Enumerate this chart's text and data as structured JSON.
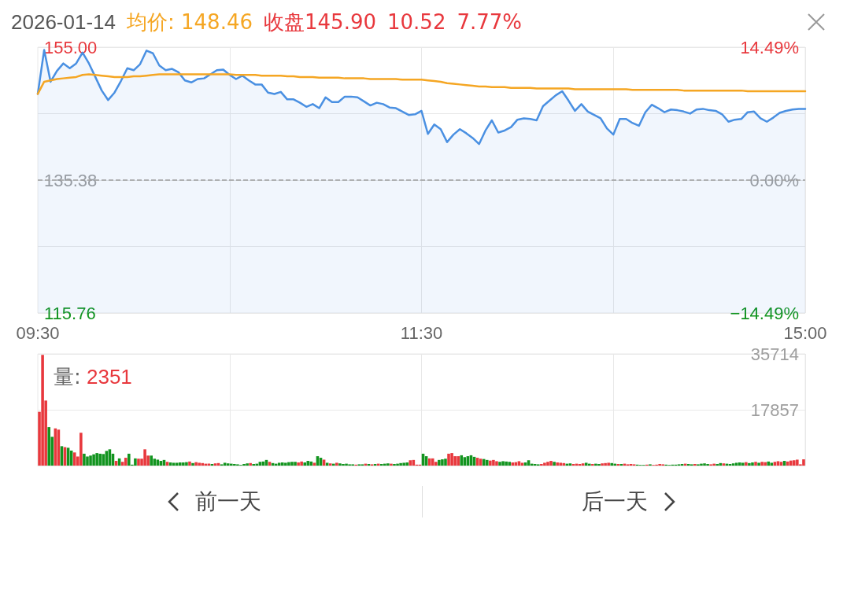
{
  "chart_data": [
    {
      "type": "line",
      "title": "2026-01-14",
      "annotations": [
        "均价: 148.46",
        "收盘145.90",
        "10.52",
        "7.77%"
      ],
      "categories": [
        "09:30",
        null,
        null,
        null,
        null,
        null,
        null,
        null,
        null,
        null,
        null,
        null,
        null,
        null,
        null,
        null,
        null,
        null,
        null,
        null,
        null,
        null,
        null,
        null,
        null,
        null,
        null,
        null,
        null,
        null,
        null,
        null,
        null,
        null,
        null,
        null,
        null,
        null,
        null,
        null,
        null,
        null,
        null,
        null,
        null,
        null,
        null,
        null,
        null,
        null,
        null,
        null,
        null,
        null,
        null,
        null,
        null,
        null,
        null,
        null,
        "11:30",
        null,
        null,
        null,
        null,
        null,
        null,
        null,
        null,
        null,
        null,
        null,
        null,
        null,
        null,
        null,
        null,
        null,
        null,
        null,
        null,
        null,
        null,
        null,
        null,
        null,
        null,
        null,
        null,
        null,
        null,
        null,
        null,
        null,
        null,
        null,
        null,
        null,
        null,
        null,
        null,
        null,
        null,
        null,
        null,
        null,
        null,
        null,
        null,
        null,
        null,
        null,
        null,
        null,
        null,
        null,
        null,
        null,
        null,
        null,
        "15:00"
      ],
      "ylim": [
        115.76,
        155.0
      ],
      "yticks": [
        {
          "value": 115.76,
          "label": "115.76"
        },
        {
          "value": 125.57,
          "label": null
        },
        {
          "value": 135.38,
          "label": "135.38"
        },
        {
          "value": 145.19,
          "label": null
        },
        {
          "value": 155.0,
          "label": "155.00"
        }
      ],
      "y2lim": [
        -14.49,
        14.49
      ],
      "y2ticks": [
        {
          "value": -14.49,
          "label": "−14.49%"
        },
        {
          "value": 0,
          "label": "0.00%"
        },
        {
          "value": 14.49,
          "label": "14.49%"
        }
      ],
      "ref_lines": [
        {
          "axis": "y",
          "value": 135.38,
          "line_style": "dashed",
          "color": "#9e9e9e"
        }
      ],
      "grid": true,
      "series": [
        {
          "type": "area",
          "color": "#4a90e2",
          "values": [
            148.1,
            154.6,
            149.9,
            151.5,
            152.6,
            151.9,
            152.6,
            154.2,
            152.6,
            150.6,
            148.6,
            147.2,
            148.3,
            150.0,
            151.9,
            151.6,
            152.5,
            154.5,
            154.1,
            152.3,
            151.6,
            151.8,
            151.3,
            150.1,
            149.8,
            150.3,
            150.4,
            151.0,
            151.6,
            151.7,
            150.9,
            150.3,
            150.8,
            150.1,
            149.5,
            149.5,
            148.3,
            148.1,
            148.4,
            147.3,
            147.3,
            146.8,
            146.2,
            146.6,
            146.0,
            147.6,
            146.9,
            146.9,
            147.7,
            147.7,
            147.6,
            147.0,
            146.4,
            146.8,
            146.6,
            146.1,
            146.0,
            145.5,
            145.0,
            145.1,
            145.6,
            142.2,
            143.6,
            142.9,
            141.0,
            142.1,
            142.9,
            142.3,
            141.6,
            140.7,
            142.7,
            144.2,
            142.4,
            142.7,
            143.2,
            144.3,
            144.5,
            144.4,
            144.2,
            146.3,
            147.1,
            147.9,
            148.5,
            147.1,
            145.6,
            146.6,
            145.5,
            145.0,
            144.5,
            143.0,
            142.1,
            144.4,
            144.4,
            143.8,
            143.4,
            145.4,
            146.5,
            146.0,
            145.4,
            145.8,
            145.7,
            145.5,
            145.2,
            145.8,
            145.9,
            145.7,
            145.6,
            145.1,
            144.0,
            144.3,
            144.4,
            145.4,
            145.5,
            144.5,
            144.0,
            144.6,
            145.3,
            145.6,
            145.8,
            145.9,
            145.9
          ]
        },
        {
          "type": "line",
          "color": "#f5a623",
          "values": [
            148.1,
            149.9,
            150.1,
            150.3,
            150.4,
            150.5,
            150.6,
            150.9,
            151.0,
            150.9,
            150.8,
            150.7,
            150.6,
            150.6,
            150.6,
            150.7,
            150.7,
            150.8,
            150.9,
            151.0,
            151.0,
            151.0,
            151.0,
            151.0,
            151.0,
            151.0,
            151.0,
            151.0,
            151.0,
            151.0,
            151.0,
            150.9,
            150.9,
            150.9,
            150.9,
            150.8,
            150.8,
            150.8,
            150.8,
            150.7,
            150.7,
            150.6,
            150.6,
            150.6,
            150.5,
            150.5,
            150.5,
            150.5,
            150.4,
            150.4,
            150.4,
            150.4,
            150.3,
            150.3,
            150.3,
            150.3,
            150.3,
            150.2,
            150.2,
            150.2,
            150.2,
            150.1,
            150.0,
            149.9,
            149.7,
            149.6,
            149.5,
            149.4,
            149.3,
            149.2,
            149.2,
            149.1,
            149.1,
            149.1,
            149.0,
            149.0,
            149.0,
            149.0,
            148.9,
            148.9,
            148.9,
            148.9,
            148.9,
            148.9,
            148.8,
            148.8,
            148.8,
            148.8,
            148.8,
            148.8,
            148.8,
            148.8,
            148.8,
            148.7,
            148.7,
            148.7,
            148.7,
            148.7,
            148.7,
            148.7,
            148.7,
            148.6,
            148.6,
            148.6,
            148.6,
            148.6,
            148.6,
            148.6,
            148.6,
            148.6,
            148.6,
            148.5,
            148.5,
            148.5,
            148.5,
            148.5,
            148.5,
            148.5,
            148.5,
            148.5,
            148.5
          ]
        }
      ]
    },
    {
      "type": "bar",
      "tick_labels": "y",
      "annotations": [
        "量: 2351",
        "前一天",
        "后一天"
      ],
      "categories": [
        null,
        null,
        null,
        null,
        null,
        null,
        null,
        null,
        null,
        null,
        null,
        null,
        null,
        null,
        null,
        null,
        null,
        null,
        null,
        null,
        null,
        null,
        null,
        null,
        null,
        null,
        null,
        null,
        null,
        null,
        null,
        null,
        null,
        null,
        null,
        null,
        null,
        null,
        null,
        null,
        null,
        null,
        null,
        null,
        null,
        null,
        null,
        null,
        null,
        null,
        null,
        null,
        null,
        null,
        null,
        null,
        null,
        null,
        null,
        null,
        null,
        null,
        null,
        null,
        null,
        null,
        null,
        null,
        null,
        null,
        null,
        null,
        null,
        null,
        null,
        null,
        null,
        null,
        null,
        null,
        null,
        null,
        null,
        null,
        null,
        null,
        null,
        null,
        null,
        null,
        null,
        null,
        null,
        null,
        null,
        null,
        null,
        null,
        null,
        null,
        null,
        null,
        null,
        null,
        null,
        null,
        null,
        null,
        null,
        null,
        null,
        null,
        null,
        null,
        null,
        null,
        null,
        null,
        null,
        null,
        null,
        null,
        null,
        null,
        null,
        null,
        null,
        null,
        null,
        null,
        null,
        null,
        null,
        null,
        null,
        null,
        null,
        null,
        null,
        null,
        null,
        null,
        null,
        null,
        null,
        null,
        null,
        null,
        null,
        null,
        null,
        null,
        null,
        null,
        null,
        null,
        null,
        null,
        null,
        null,
        null,
        null,
        null,
        null,
        null,
        null,
        null,
        null,
        null,
        null,
        null,
        null,
        null,
        null,
        null,
        null,
        null,
        null,
        null,
        null,
        null,
        null,
        null,
        null,
        null,
        null,
        null,
        null,
        null,
        null,
        null,
        null,
        null,
        null,
        null,
        null,
        null,
        null,
        null,
        null,
        null,
        null,
        null,
        null,
        null,
        null,
        null,
        null,
        null,
        null,
        null,
        null,
        null,
        null,
        null,
        null,
        null,
        null,
        null,
        null,
        null,
        null,
        null,
        null,
        null,
        null,
        null,
        null,
        null,
        null,
        null,
        null,
        null,
        null,
        null,
        null,
        null,
        null,
        null,
        null
      ],
      "ylim": [
        0,
        35714
      ],
      "yticks": [
        {
          "value": 0,
          "label": null
        },
        17857,
        35714
      ],
      "grid": true,
      "values": [
        17200,
        35400,
        20800,
        12300,
        9200,
        11900,
        11500,
        6200,
        5900,
        5700,
        4800,
        4200,
        2900,
        10500,
        3800,
        2900,
        3200,
        3600,
        4000,
        3800,
        3700,
        4700,
        5200,
        3800,
        1500,
        2300,
        1200,
        2500,
        3800,
        300,
        2300,
        2200,
        2200,
        5200,
        3200,
        3200,
        2200,
        1900,
        1500,
        1800,
        1200,
        1000,
        900,
        900,
        1000,
        1000,
        1100,
        1300,
        800,
        1100,
        900,
        800,
        600,
        600,
        500,
        700,
        800,
        400,
        900,
        700,
        600,
        500,
        400,
        200,
        500,
        700,
        800,
        500,
        600,
        1200,
        1300,
        1800,
        1200,
        800,
        600,
        900,
        1000,
        900,
        1100,
        1200,
        1200,
        1000,
        1300,
        1000,
        1500,
        1300,
        900,
        3000,
        2500,
        1900,
        900,
        700,
        600,
        900,
        700,
        500,
        600,
        400,
        400,
        300,
        400,
        400,
        600,
        500,
        400,
        500,
        600,
        500,
        600,
        700,
        600,
        500,
        600,
        800,
        900,
        1000,
        1700,
        1800,
        300,
        300,
        3800,
        3000,
        2300,
        2300,
        1200,
        1800,
        2000,
        2200,
        3800,
        4000,
        3000,
        3000,
        3300,
        2700,
        3000,
        3300,
        2800,
        2500,
        2200,
        2100,
        1800,
        1600,
        1800,
        1400,
        1200,
        1400,
        1300,
        1200,
        1000,
        1100,
        1400,
        900,
        1000,
        1700,
        600,
        500,
        400,
        500,
        900,
        1200,
        1500,
        1200,
        1000,
        900,
        800,
        600,
        700,
        500,
        600,
        500,
        700,
        900,
        600,
        500,
        600,
        500,
        700,
        800,
        900,
        800,
        600,
        500,
        500,
        600,
        400,
        500,
        400,
        300,
        200,
        200,
        300,
        400,
        200,
        300,
        500,
        400,
        300,
        200,
        300,
        300,
        400,
        500,
        600,
        500,
        400,
        500,
        400,
        600,
        700,
        500,
        400,
        600,
        500,
        800,
        700,
        600,
        500,
        700,
        900,
        1000,
        900,
        1100,
        800,
        1000,
        1200,
        900,
        1200,
        1100,
        1300,
        900,
        1200,
        1400,
        1200,
        1500,
        1300,
        1600,
        1700,
        1900,
        400,
        2000
      ],
      "colors": [
        "#e8383d",
        "#e8383d",
        "#e8383d",
        "#12941f",
        "#12941f",
        "#e8383d",
        "#e8383d",
        "#12941f",
        "#e8383d",
        "#12941f",
        "#12941f",
        "#e8383d",
        "#e8383d",
        "#e8383d",
        "#12941f",
        "#12941f",
        "#12941f",
        "#12941f",
        "#12941f",
        "#12941f",
        "#12941f",
        "#12941f",
        "#12941f",
        "#12941f",
        "#e8383d",
        "#12941f",
        "#e8383d",
        "#e8383d",
        "#12941f",
        "#12941f",
        "#12941f",
        "#e8383d",
        "#e8383d",
        "#e8383d",
        "#e8383d",
        "#12941f",
        "#12941f",
        "#12941f",
        "#12941f",
        "#12941f",
        "#e8383d",
        "#12941f",
        "#12941f",
        "#12941f",
        "#12941f",
        "#12941f",
        "#12941f",
        "#e8383d",
        "#12941f",
        "#e8383d",
        "#e8383d",
        "#e8383d",
        "#e8383d",
        "#e8383d",
        "#12941f",
        "#e8383d",
        "#e8383d",
        "#12941f",
        "#12941f",
        "#12941f",
        "#12941f",
        "#12941f",
        "#12941f",
        "#12941f",
        "#12941f",
        "#12941f",
        "#e8383d",
        "#12941f",
        "#12941f",
        "#12941f",
        "#12941f",
        "#12941f",
        "#e8383d",
        "#12941f",
        "#12941f",
        "#12941f",
        "#12941f",
        "#12941f",
        "#12941f",
        "#12941f",
        "#12941f",
        "#e8383d",
        "#e8383d",
        "#12941f",
        "#12941f",
        "#12941f",
        "#e8383d",
        "#12941f",
        "#12941f",
        "#e8383d",
        "#12941f",
        "#e8383d",
        "#12941f",
        "#e8383d",
        "#12941f",
        "#12941f",
        "#12941f",
        "#12941f",
        "#12941f",
        "#e8383d",
        "#12941f",
        "#12941f",
        "#e8383d",
        "#12941f",
        "#e8383d",
        "#12941f",
        "#e8383d",
        "#12941f",
        "#12941f",
        "#12941f",
        "#e8383d",
        "#12941f",
        "#12941f",
        "#12941f",
        "#12941f",
        "#12941f",
        "#e8383d",
        "#e8383d",
        "#e8383d",
        "#e8383d",
        "#12941f",
        "#12941f",
        "#e8383d",
        "#e8383d",
        "#e8383d",
        "#12941f",
        "#12941f",
        "#12941f",
        "#e8383d",
        "#e8383d",
        "#e8383d",
        "#e8383d",
        "#12941f",
        "#12941f",
        "#12941f",
        "#12941f",
        "#12941f",
        "#e8383d",
        "#e8383d",
        "#12941f",
        "#12941f",
        "#e8383d",
        "#e8383d",
        "#e8383d",
        "#12941f",
        "#12941f",
        "#12941f",
        "#12941f",
        "#e8383d",
        "#e8383d",
        "#e8383d",
        "#e8383d",
        "#12941f",
        "#12941f",
        "#12941f",
        "#12941f",
        "#12941f",
        "#e8383d",
        "#e8383d",
        "#e8383d",
        "#e8383d",
        "#12941f",
        "#e8383d",
        "#e8383d",
        "#e8383d",
        "#12941f",
        "#12941f",
        "#e8383d",
        "#e8383d",
        "#e8383d",
        "#e8383d",
        "#12941f",
        "#12941f",
        "#e8383d",
        "#12941f",
        "#12941f",
        "#e8383d",
        "#e8383d",
        "#e8383d",
        "#12941f",
        "#12941f",
        "#e8383d",
        "#12941f",
        "#e8383d",
        "#e8383d",
        "#e8383d",
        "#e8383d",
        "#12941f",
        "#12941f",
        "#12941f",
        "#e8383d",
        "#12941f",
        "#e8383d",
        "#e8383d",
        "#e8383d",
        "#e8383d",
        "#12941f",
        "#12941f",
        "#12941f",
        "#12941f",
        "#12941f",
        "#12941f",
        "#e8383d",
        "#12941f",
        "#12941f",
        "#e8383d",
        "#12941f",
        "#12941f",
        "#12941f",
        "#12941f",
        "#e8383d",
        "#e8383d",
        "#12941f",
        "#12941f",
        "#e8383d",
        "#12941f",
        "#12941f",
        "#12941f",
        "#12941f",
        "#12941f",
        "#12941f",
        "#e8383d",
        "#12941f",
        "#12941f",
        "#e8383d",
        "#12941f",
        "#e8383d",
        "#e8383d",
        "#12941f",
        "#12941f",
        "#e8383d",
        "#e8383d",
        "#e8383d",
        "#12941f",
        "#e8383d",
        "#e8383d",
        "#e8383d",
        "#e8383d",
        "#e8383d",
        "#e8383d"
      ]
    }
  ]
}
